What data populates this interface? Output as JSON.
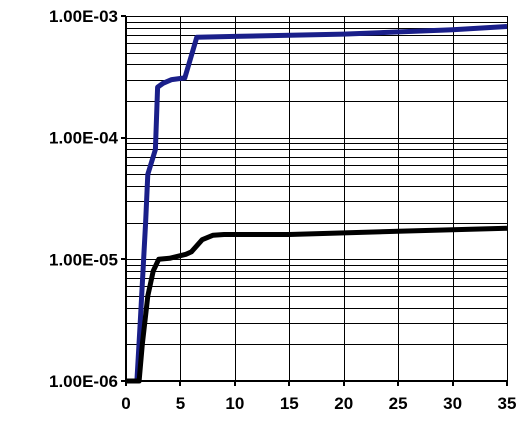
{
  "chart_data": {
    "type": "line",
    "title": "",
    "xlabel": "",
    "ylabel": "",
    "xlim": [
      0,
      35
    ],
    "ylim": [
      1e-06,
      0.001
    ],
    "y_scale": "log",
    "grid": true,
    "x_ticks": [
      0,
      5,
      10,
      15,
      20,
      25,
      30,
      35
    ],
    "x_tick_labels": [
      "0",
      "5",
      "10",
      "15",
      "20",
      "25",
      "30",
      "35"
    ],
    "y_ticks": [
      1e-06,
      1e-05,
      0.0001,
      0.001
    ],
    "y_tick_labels": [
      "1.00E-06",
      "1.00E-05",
      "1.00E-04",
      "1.00E-03"
    ],
    "series": [
      {
        "color": "#1a1f8a",
        "points": [
          [
            0,
            1e-06
          ],
          [
            1.0,
            1e-06
          ],
          [
            1.3,
            3e-06
          ],
          [
            1.8,
            2e-05
          ],
          [
            2.0,
            5e-05
          ],
          [
            2.7,
            8e-05
          ],
          [
            2.9,
            0.00026
          ],
          [
            3.4,
            0.00028
          ],
          [
            4.2,
            0.0003
          ],
          [
            5.4,
            0.00031
          ],
          [
            6.5,
            0.00067
          ],
          [
            10,
            0.00068
          ],
          [
            20,
            0.00071
          ],
          [
            30,
            0.00077
          ],
          [
            35,
            0.00082
          ]
        ]
      },
      {
        "color": "#000000",
        "points": [
          [
            0,
            1e-06
          ],
          [
            1.2,
            1e-06
          ],
          [
            1.5,
            2e-06
          ],
          [
            2.0,
            5e-06
          ],
          [
            2.5,
            8e-06
          ],
          [
            3.0,
            1e-05
          ],
          [
            4.0,
            1.02e-05
          ],
          [
            5.5,
            1.1e-05
          ],
          [
            6.0,
            1.15e-05
          ],
          [
            7.0,
            1.45e-05
          ],
          [
            8.0,
            1.58e-05
          ],
          [
            9.0,
            1.6e-05
          ],
          [
            15,
            1.6e-05
          ],
          [
            25,
            1.7e-05
          ],
          [
            35,
            1.8e-05
          ]
        ]
      }
    ]
  }
}
